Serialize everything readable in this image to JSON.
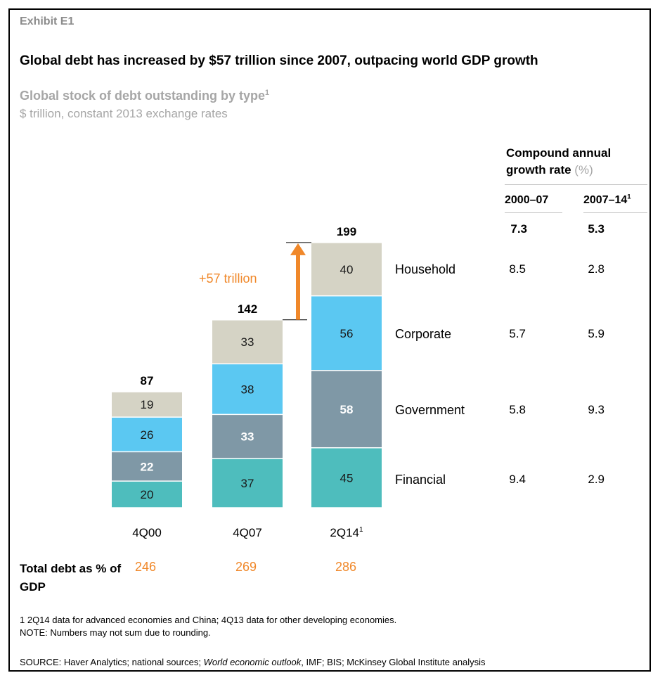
{
  "exhibit": "Exhibit E1",
  "title": "Global debt has increased by $57 trillion since 2007, outpacing world GDP growth",
  "subtitle": "Global stock of debt outstanding by type",
  "subtitle_sup": "1",
  "subtitle2": "$ trillion, constant 2013 exchange rates",
  "cagr": {
    "heading_line1": "Compound annual",
    "heading_line2": "growth rate",
    "heading_unit": "(%)",
    "col1": "2000–07",
    "col2": "2007–14",
    "col2_sup": "1",
    "total": [
      "7.3",
      "5.3"
    ],
    "rows": [
      {
        "name": "Household",
        "v1": "8.5",
        "v2": "2.8"
      },
      {
        "name": "Corporate",
        "v1": "5.7",
        "v2": "5.9"
      },
      {
        "name": "Government",
        "v1": "5.8",
        "v2": "9.3"
      },
      {
        "name": "Financial",
        "v1": "9.4",
        "v2": "2.9"
      }
    ]
  },
  "annotation": "+57 trillion",
  "gdp": {
    "label": "Total debt as % of GDP",
    "values": [
      "246",
      "269",
      "286"
    ]
  },
  "footnote1": "1  2Q14 data for advanced economies and China; 4Q13 data for other developing economies.",
  "note": "NOTE: Numbers may not sum due to rounding.",
  "source_prefix": "SOURCE:  Haver Analytics; national sources; ",
  "source_italic": "World economic outlook",
  "source_suffix": ", IMF; BIS; McKinsey Global Institute analysis",
  "colors": {
    "financial": "#4ebdbd",
    "government": "#7f98a6",
    "corporate": "#5bc8f2",
    "household": "#d5d3c5",
    "accent": "#f0882a"
  },
  "chart_data": {
    "type": "bar",
    "stacked": true,
    "categories": [
      "4Q00",
      "4Q07",
      "2Q14"
    ],
    "category_sups": [
      "",
      "",
      "1"
    ],
    "totals": [
      87,
      142,
      199
    ],
    "series": [
      {
        "name": "Financial",
        "values": [
          20,
          37,
          45
        ],
        "color": "#4ebdbd",
        "label_color": "#1a1a1a",
        "bold": false
      },
      {
        "name": "Government",
        "values": [
          22,
          33,
          58
        ],
        "color": "#7f98a6",
        "label_color": "#ffffff",
        "bold": true
      },
      {
        "name": "Corporate",
        "values": [
          26,
          38,
          56
        ],
        "color": "#5bc8f2",
        "label_color": "#1a1a1a",
        "bold": false
      },
      {
        "name": "Household",
        "values": [
          19,
          33,
          40
        ],
        "color": "#d5d3c5",
        "label_color": "#1a1a1a",
        "bold": false
      }
    ]
  }
}
